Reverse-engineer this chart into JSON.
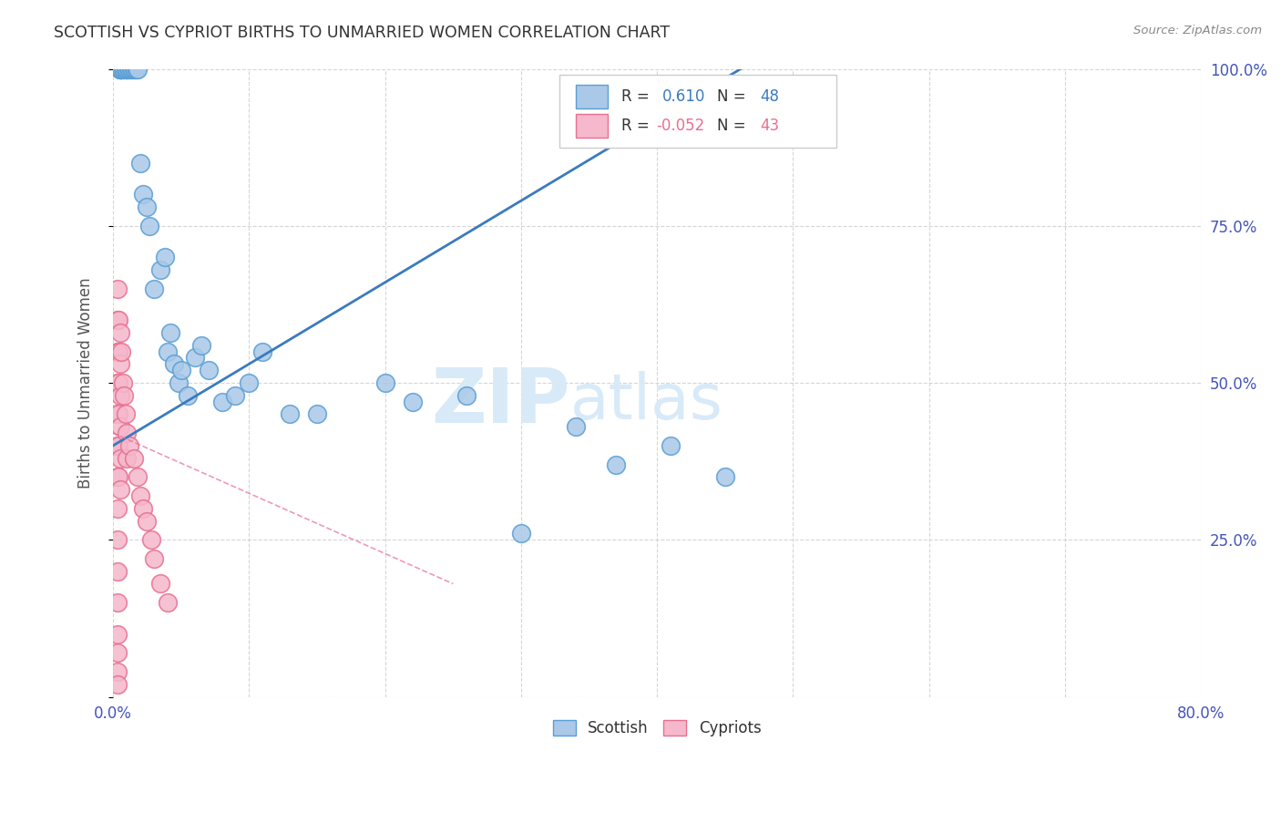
{
  "title": "SCOTTISH VS CYPRIOT BIRTHS TO UNMARRIED WOMEN CORRELATION CHART",
  "source": "Source: ZipAtlas.com",
  "ylabel": "Births to Unmarried Women",
  "xlim": [
    0.0,
    0.8
  ],
  "ylim": [
    0.0,
    1.0
  ],
  "blue_color": "#aac8e8",
  "blue_edge_color": "#5a9fd4",
  "blue_line_color": "#3a7bbf",
  "pink_color": "#f5b8cc",
  "pink_edge_color": "#e87090",
  "pink_line_color": "#e87090",
  "background_color": "#ffffff",
  "grid_color": "#cccccc",
  "title_color": "#333333",
  "axis_label_color": "#555555",
  "tick_color": "#4455bb",
  "watermark_color": "#d8eaf8",
  "scottish_x": [
    0.005,
    0.005,
    0.005,
    0.005,
    0.006,
    0.007,
    0.008,
    0.009,
    0.01,
    0.01,
    0.011,
    0.012,
    0.013,
    0.014,
    0.015,
    0.016,
    0.017,
    0.018,
    0.02,
    0.022,
    0.025,
    0.027,
    0.03,
    0.035,
    0.038,
    0.04,
    0.042,
    0.045,
    0.048,
    0.05,
    0.055,
    0.06,
    0.065,
    0.07,
    0.08,
    0.09,
    0.1,
    0.11,
    0.13,
    0.15,
    0.2,
    0.22,
    0.26,
    0.3,
    0.34,
    0.37,
    0.41,
    0.45
  ],
  "scottish_y": [
    1.0,
    1.0,
    1.0,
    1.0,
    1.0,
    1.0,
    1.0,
    1.0,
    1.0,
    1.0,
    1.0,
    1.0,
    1.0,
    1.0,
    1.0,
    1.0,
    1.0,
    1.0,
    0.85,
    0.8,
    0.78,
    0.75,
    0.65,
    0.68,
    0.7,
    0.55,
    0.58,
    0.53,
    0.5,
    0.52,
    0.48,
    0.54,
    0.56,
    0.52,
    0.47,
    0.48,
    0.5,
    0.55,
    0.45,
    0.45,
    0.5,
    0.47,
    0.48,
    0.26,
    0.43,
    0.37,
    0.4,
    0.35
  ],
  "cypriot_x": [
    0.003,
    0.003,
    0.003,
    0.003,
    0.003,
    0.003,
    0.003,
    0.003,
    0.003,
    0.003,
    0.003,
    0.003,
    0.003,
    0.003,
    0.003,
    0.004,
    0.004,
    0.004,
    0.004,
    0.004,
    0.004,
    0.005,
    0.005,
    0.005,
    0.005,
    0.005,
    0.005,
    0.006,
    0.007,
    0.008,
    0.009,
    0.01,
    0.01,
    0.012,
    0.015,
    0.018,
    0.02,
    0.022,
    0.025,
    0.028,
    0.03,
    0.035,
    0.04
  ],
  "cypriot_y": [
    0.65,
    0.6,
    0.55,
    0.5,
    0.45,
    0.4,
    0.35,
    0.3,
    0.25,
    0.2,
    0.15,
    0.1,
    0.07,
    0.04,
    0.02,
    0.6,
    0.55,
    0.5,
    0.45,
    0.4,
    0.35,
    0.58,
    0.53,
    0.48,
    0.43,
    0.38,
    0.33,
    0.55,
    0.5,
    0.48,
    0.45,
    0.42,
    0.38,
    0.4,
    0.38,
    0.35,
    0.32,
    0.3,
    0.28,
    0.25,
    0.22,
    0.18,
    0.15
  ],
  "marker_size": 200
}
